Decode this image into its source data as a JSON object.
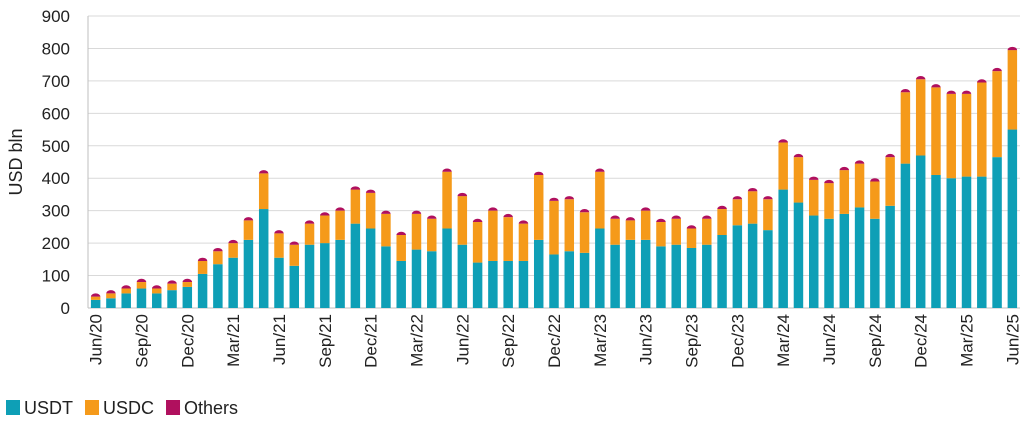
{
  "chart_data": {
    "type": "bar",
    "stacked": true,
    "ylabel": "USD bln",
    "ylim": [
      0,
      900
    ],
    "yticks": [
      0,
      100,
      200,
      300,
      400,
      500,
      600,
      700,
      800,
      900
    ],
    "grid": "horizontal",
    "legend_position": "bottom-left",
    "x_tick_labels": [
      "Jun/20",
      "Sep/20",
      "Dec/20",
      "Mar/21",
      "Jun/21",
      "Sep/21",
      "Dec/21",
      "Mar/22",
      "Jun/22",
      "Sep/22",
      "Dec/22",
      "Mar/23",
      "Jun/23",
      "Sep/23",
      "Dec/23",
      "Mar/24",
      "Jun/24",
      "Sep/24",
      "Dec/24",
      "Mar/25",
      "Jun/25"
    ],
    "categories": [
      "Jun/20",
      "Jul/20",
      "Aug/20",
      "Sep/20",
      "Oct/20",
      "Nov/20",
      "Dec/20",
      "Jan/21",
      "Feb/21",
      "Mar/21",
      "Apr/21",
      "May/21",
      "Jun/21",
      "Jul/21",
      "Aug/21",
      "Sep/21",
      "Oct/21",
      "Nov/21",
      "Dec/21",
      "Jan/22",
      "Feb/22",
      "Mar/22",
      "Apr/22",
      "May/22",
      "Jun/22",
      "Jul/22",
      "Aug/22",
      "Sep/22",
      "Oct/22",
      "Nov/22",
      "Dec/22",
      "Jan/23",
      "Feb/23",
      "Mar/23",
      "Apr/23",
      "May/23",
      "Jun/23",
      "Jul/23",
      "Aug/23",
      "Sep/23",
      "Oct/23",
      "Nov/23",
      "Dec/23",
      "Jan/24",
      "Feb/24",
      "Mar/24",
      "Apr/24",
      "May/24",
      "Jun/24",
      "Jul/24",
      "Aug/24",
      "Sep/24",
      "Oct/24",
      "Nov/24",
      "Dec/24",
      "Jan/25",
      "Feb/25",
      "Mar/25",
      "Apr/25",
      "May/25",
      "Jun/25"
    ],
    "series": [
      {
        "name": "USDT",
        "color": "#0e9fb6",
        "values": [
          25,
          30,
          45,
          60,
          45,
          55,
          65,
          105,
          135,
          155,
          210,
          305,
          155,
          130,
          195,
          200,
          210,
          260,
          245,
          190,
          145,
          180,
          175,
          245,
          195,
          140,
          145,
          145,
          145,
          210,
          165,
          175,
          170,
          245,
          195,
          210,
          210,
          190,
          195,
          185,
          195,
          225,
          255,
          260,
          240,
          365,
          325,
          285,
          275,
          290,
          310,
          275,
          315,
          445,
          470,
          410,
          400,
          405,
          405,
          465,
          550
        ]
      },
      {
        "name": "USDC",
        "color": "#f59a1a",
        "values": [
          10,
          15,
          15,
          20,
          15,
          20,
          15,
          40,
          40,
          45,
          60,
          110,
          75,
          65,
          65,
          85,
          90,
          105,
          110,
          100,
          80,
          110,
          100,
          175,
          150,
          125,
          155,
          135,
          115,
          200,
          165,
          160,
          125,
          175,
          80,
          60,
          90,
          75,
          80,
          60,
          80,
          80,
          80,
          100,
          95,
          145,
          140,
          110,
          110,
          135,
          135,
          115,
          150,
          220,
          235,
          270,
          260,
          255,
          290,
          265,
          245
        ]
      },
      {
        "name": "Others",
        "color": "#b0105e",
        "values": [
          10,
          10,
          10,
          10,
          10,
          10,
          10,
          10,
          10,
          10,
          10,
          10,
          10,
          10,
          10,
          10,
          10,
          10,
          10,
          10,
          10,
          10,
          10,
          10,
          10,
          10,
          10,
          10,
          10,
          10,
          10,
          10,
          10,
          10,
          10,
          10,
          10,
          10,
          10,
          10,
          10,
          10,
          10,
          10,
          10,
          10,
          10,
          10,
          10,
          10,
          10,
          10,
          10,
          10,
          10,
          10,
          10,
          10,
          10,
          10,
          10
        ]
      }
    ]
  }
}
